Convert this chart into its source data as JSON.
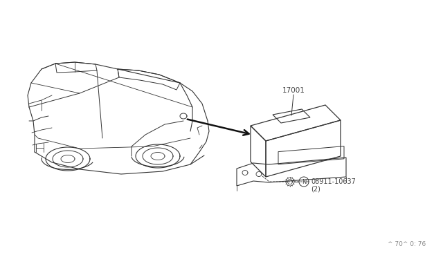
{
  "bg_color": "#ffffff",
  "line_color": "#333333",
  "text_color": "#444444",
  "arrow_color": "#111111",
  "part_number_main": "17001",
  "part_number_bolt": "08911-10637",
  "part_qty": "(2)",
  "footer_text": "^ 70^ 0: 76",
  "fig_width": 6.4,
  "fig_height": 3.72,
  "car_ox": 30,
  "car_oy": 25
}
